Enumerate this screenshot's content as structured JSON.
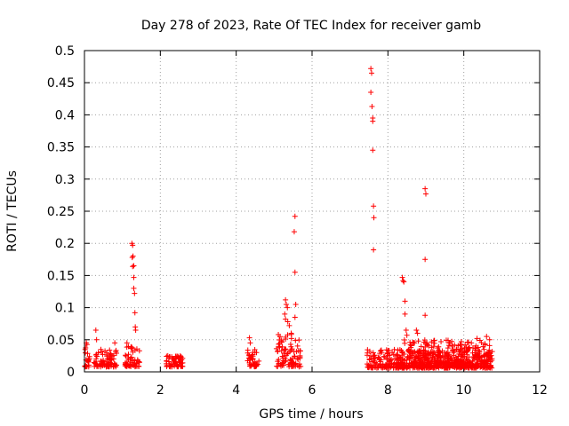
{
  "chart_data": {
    "type": "scatter",
    "title": "Day 278 of 2023, Rate Of TEC Index for receiver gamb",
    "xlabel": "GPS time / hours",
    "ylabel": "ROTI / TECUs",
    "xlim": [
      0,
      12
    ],
    "ylim": [
      0,
      0.5
    ],
    "grid": true,
    "x_ticks": [
      0,
      2,
      4,
      6,
      8,
      10,
      12
    ],
    "x_tick_labels": [
      "0",
      "2",
      "4",
      "6",
      "8",
      "10",
      "12"
    ],
    "y_ticks": [
      0,
      0.05,
      0.1,
      0.15,
      0.2,
      0.25,
      0.3,
      0.35,
      0.4,
      0.45,
      0.5
    ],
    "y_tick_labels": [
      "0",
      "0.05",
      "0.1",
      "0.15",
      "0.2",
      "0.25",
      "0.3",
      "0.35",
      "0.4",
      "0.45",
      "0.5"
    ],
    "marker": "plus",
    "series": [
      {
        "name": "ROTI",
        "color": "#ff0000",
        "background_clusters": [
          {
            "x_range": [
              0.0,
              0.15
            ],
            "y_range": [
              0.008,
              0.045
            ]
          },
          {
            "x_range": [
              0.25,
              0.85
            ],
            "y_range": [
              0.008,
              0.035
            ]
          },
          {
            "x_range": [
              1.05,
              1.45
            ],
            "y_range": [
              0.008,
              0.04
            ]
          },
          {
            "x_range": [
              2.15,
              2.6
            ],
            "y_range": [
              0.008,
              0.025
            ]
          },
          {
            "x_range": [
              4.3,
              4.6
            ],
            "y_range": [
              0.008,
              0.035
            ]
          },
          {
            "x_range": [
              5.05,
              5.7
            ],
            "y_range": [
              0.008,
              0.06
            ]
          },
          {
            "x_range": [
              7.45,
              10.75
            ],
            "y_range": [
              0.006,
              0.035
            ]
          },
          {
            "x_range": [
              8.3,
              10.7
            ],
            "y_range": [
              0.008,
              0.05
            ]
          }
        ],
        "points": [
          {
            "x": 0.05,
            "y": 0.045
          },
          {
            "x": 0.3,
            "y": 0.065
          },
          {
            "x": 0.32,
            "y": 0.05
          },
          {
            "x": 0.8,
            "y": 0.045
          },
          {
            "x": 1.12,
            "y": 0.045
          },
          {
            "x": 1.25,
            "y": 0.2
          },
          {
            "x": 1.27,
            "y": 0.197
          },
          {
            "x": 1.28,
            "y": 0.18
          },
          {
            "x": 1.26,
            "y": 0.178
          },
          {
            "x": 1.3,
            "y": 0.165
          },
          {
            "x": 1.27,
            "y": 0.164
          },
          {
            "x": 1.3,
            "y": 0.147
          },
          {
            "x": 1.3,
            "y": 0.13
          },
          {
            "x": 1.32,
            "y": 0.122
          },
          {
            "x": 1.33,
            "y": 0.092
          },
          {
            "x": 1.34,
            "y": 0.07
          },
          {
            "x": 1.35,
            "y": 0.065
          },
          {
            "x": 4.35,
            "y": 0.053
          },
          {
            "x": 4.37,
            "y": 0.045
          },
          {
            "x": 5.3,
            "y": 0.112
          },
          {
            "x": 5.32,
            "y": 0.105
          },
          {
            "x": 5.35,
            "y": 0.1
          },
          {
            "x": 5.28,
            "y": 0.09
          },
          {
            "x": 5.3,
            "y": 0.082
          },
          {
            "x": 5.36,
            "y": 0.078
          },
          {
            "x": 5.4,
            "y": 0.072
          },
          {
            "x": 5.45,
            "y": 0.06
          },
          {
            "x": 5.55,
            "y": 0.242
          },
          {
            "x": 5.53,
            "y": 0.218
          },
          {
            "x": 5.55,
            "y": 0.155
          },
          {
            "x": 5.57,
            "y": 0.105
          },
          {
            "x": 5.55,
            "y": 0.085
          },
          {
            "x": 7.55,
            "y": 0.472
          },
          {
            "x": 7.57,
            "y": 0.465
          },
          {
            "x": 7.55,
            "y": 0.435
          },
          {
            "x": 7.58,
            "y": 0.413
          },
          {
            "x": 7.6,
            "y": 0.395
          },
          {
            "x": 7.6,
            "y": 0.39
          },
          {
            "x": 7.6,
            "y": 0.345
          },
          {
            "x": 7.62,
            "y": 0.258
          },
          {
            "x": 7.63,
            "y": 0.24
          },
          {
            "x": 7.62,
            "y": 0.19
          },
          {
            "x": 8.38,
            "y": 0.147
          },
          {
            "x": 8.4,
            "y": 0.142
          },
          {
            "x": 8.42,
            "y": 0.14
          },
          {
            "x": 8.45,
            "y": 0.11
          },
          {
            "x": 8.45,
            "y": 0.09
          },
          {
            "x": 8.48,
            "y": 0.065
          },
          {
            "x": 8.5,
            "y": 0.057
          },
          {
            "x": 8.75,
            "y": 0.065
          },
          {
            "x": 8.78,
            "y": 0.06
          },
          {
            "x": 8.8,
            "y": 0.048
          },
          {
            "x": 8.98,
            "y": 0.285
          },
          {
            "x": 9.0,
            "y": 0.277
          },
          {
            "x": 8.98,
            "y": 0.175
          },
          {
            "x": 8.98,
            "y": 0.088
          },
          {
            "x": 9.4,
            "y": 0.047
          },
          {
            "x": 9.7,
            "y": 0.04
          },
          {
            "x": 10.2,
            "y": 0.045
          },
          {
            "x": 10.35,
            "y": 0.052
          },
          {
            "x": 10.6,
            "y": 0.055
          },
          {
            "x": 10.68,
            "y": 0.05
          }
        ]
      }
    ]
  }
}
